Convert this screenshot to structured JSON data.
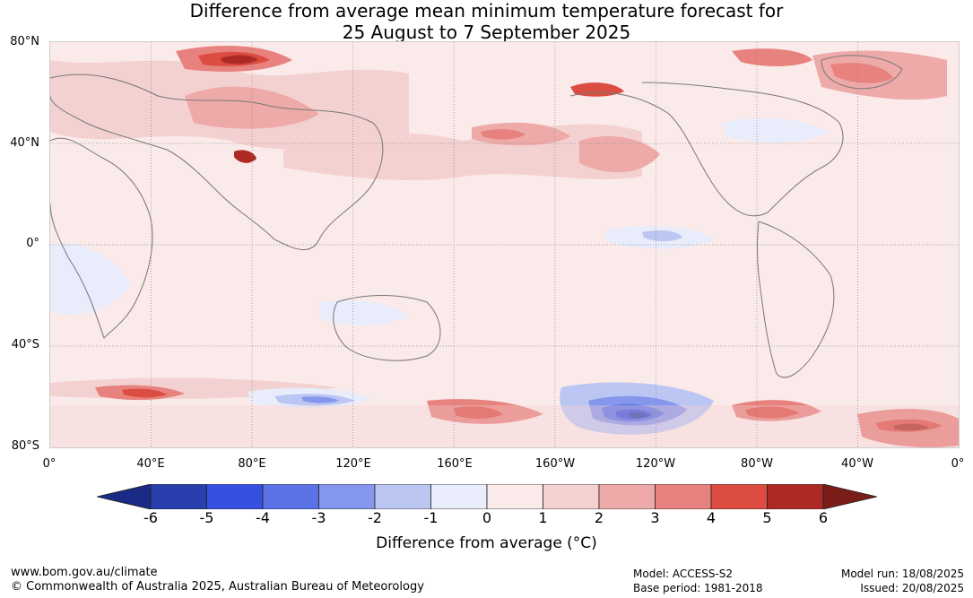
{
  "title": {
    "line1": "Difference from average mean minimum temperature forecast for",
    "line2": "25 August to 7 September 2025"
  },
  "map": {
    "lat_labels": [
      "80°N",
      "40°N",
      "0°",
      "40°S",
      "80°S"
    ],
    "lon_labels": [
      "0°",
      "40°E",
      "80°E",
      "120°E",
      "160°E",
      "160°W",
      "120°W",
      "80°W",
      "40°W",
      "0°"
    ]
  },
  "colorbar": {
    "ticks": [
      "-6",
      "-5",
      "-4",
      "-3",
      "-2",
      "-1",
      "0",
      "1",
      "2",
      "3",
      "4",
      "5",
      "6"
    ],
    "colors": [
      "#2a3fae",
      "#3651e0",
      "#5a72e6",
      "#8597ec",
      "#bcc6f3",
      "#e8ecfb",
      "#fbeaea",
      "#f4d1d1",
      "#eeaaa8",
      "#e7827e",
      "#dc4c41",
      "#ad2a24"
    ],
    "under_color": "#1b2a85",
    "over_color": "#7a1c17",
    "label": "Difference from average (°C)"
  },
  "footer": {
    "website": "www.bom.gov.au/climate",
    "copyright": "© Commonwealth of Australia 2025, Australian Bureau of Meteorology",
    "model": "Model: ACCESS-S2",
    "base_period": "Base period: 1981-2018",
    "model_run": "Model run: 18/08/2025",
    "issued": "Issued: 20/08/2025"
  }
}
